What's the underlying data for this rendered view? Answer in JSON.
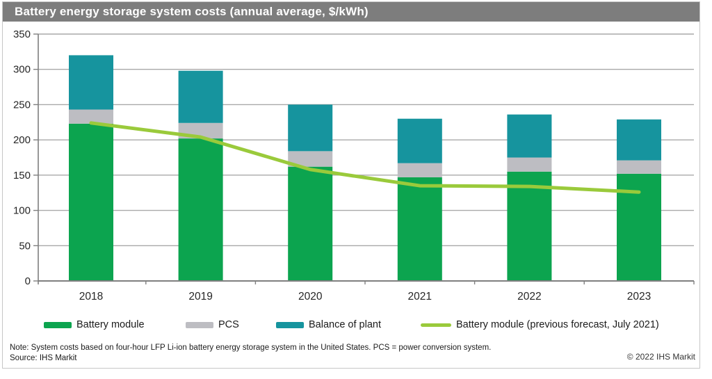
{
  "header": {
    "title": "Battery energy storage system costs (annual average, $/kWh)"
  },
  "chart_data": {
    "type": "bar",
    "stacked": true,
    "title": "Battery energy storage system costs (annual average, $/kWh)",
    "categories": [
      "2018",
      "2019",
      "2020",
      "2021",
      "2022",
      "2023"
    ],
    "series": [
      {
        "name": "Battery module",
        "type": "bar",
        "color": "#0ca44f",
        "values": [
          223,
          202,
          162,
          147,
          155,
          152
        ]
      },
      {
        "name": "PCS",
        "type": "bar",
        "color": "#bdbdc2",
        "values": [
          20,
          22,
          22,
          20,
          20,
          19
        ]
      },
      {
        "name": "Balance of plant",
        "type": "bar",
        "color": "#16949e",
        "values": [
          77,
          74,
          66,
          63,
          61,
          58
        ]
      },
      {
        "name": "Battery module (previous forecast, July 2021)",
        "type": "line",
        "color": "#9aca3b",
        "values": [
          224,
          204,
          158,
          135,
          134,
          126
        ]
      }
    ],
    "stack_totals": [
      320,
      298,
      250,
      230,
      236,
      229
    ],
    "ylim": [
      0,
      350
    ],
    "yticks": [
      0,
      50,
      100,
      150,
      200,
      250,
      300,
      350
    ],
    "xlabel": "",
    "ylabel": "",
    "grid": true,
    "legend_position": "bottom",
    "colors": {
      "grid_line": "#a9a9a9",
      "axis_line": "#7f7f7f",
      "tick_label": "#262626",
      "title_bar_bg": "#7d7d7d",
      "title_text": "#ffffff"
    }
  },
  "footer": {
    "note": "Note: System costs based on four-hour LFP Li-ion battery energy storage system in the United States. PCS = power conversion system.",
    "source": "Source: IHS Markit",
    "copyright": "© 2022 IHS Markit"
  }
}
